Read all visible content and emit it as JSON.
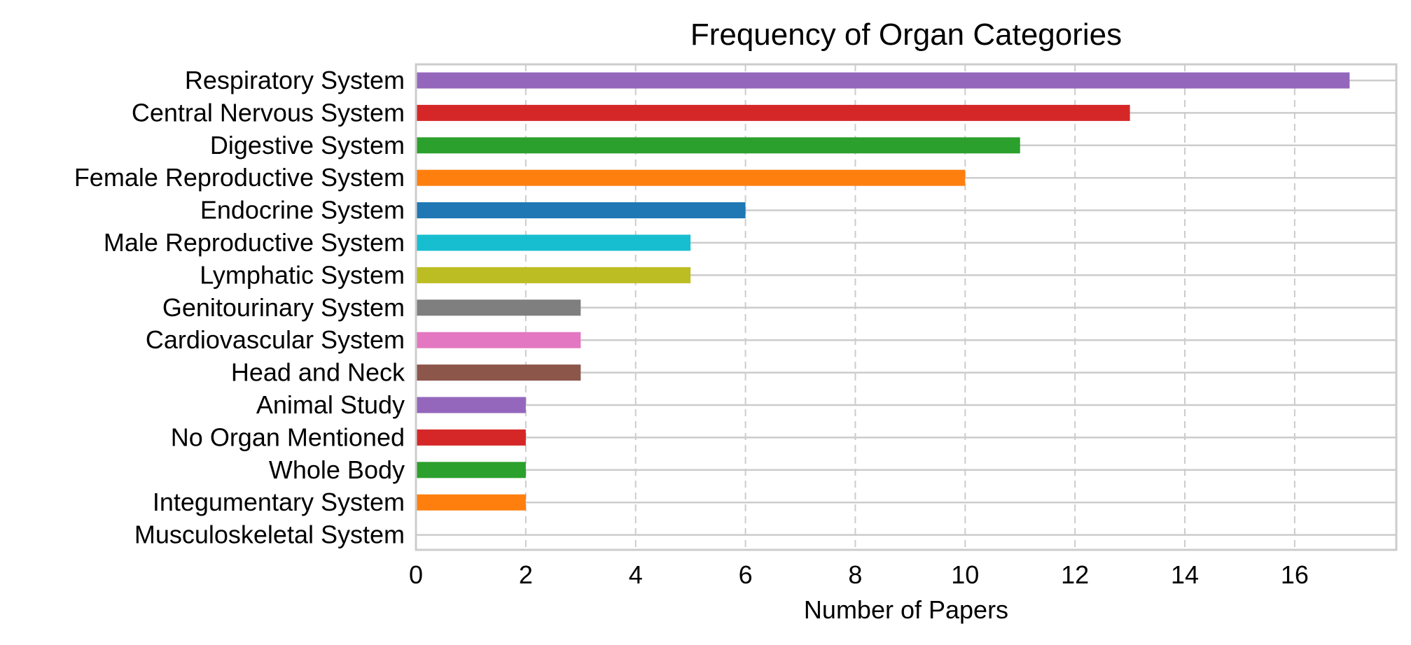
{
  "chart_data": {
    "type": "bar",
    "orientation": "horizontal",
    "title": "Frequency of Organ Categories",
    "xlabel": "Number of Papers",
    "ylabel": "",
    "xlim": [
      0,
      17.85
    ],
    "xticks": [
      0,
      2,
      4,
      6,
      8,
      10,
      12,
      14,
      16
    ],
    "grid": true,
    "categories": [
      "Respiratory System",
      "Central Nervous System",
      "Digestive System",
      "Female Reproductive System",
      "Endocrine System",
      "Male Reproductive System",
      "Lymphatic System",
      "Genitourinary System",
      "Cardiovascular System",
      "Head and Neck",
      "Animal Study",
      "No Organ Mentioned",
      "Whole Body",
      "Integumentary System",
      "Musculoskeletal System"
    ],
    "values": [
      17,
      13,
      11,
      10,
      6,
      5,
      5,
      3,
      3,
      3,
      2,
      2,
      2,
      2,
      0
    ],
    "colors": [
      "#9467bd",
      "#d62728",
      "#2ca02c",
      "#ff7f0e",
      "#1f77b4",
      "#17becf",
      "#bcbd22",
      "#7f7f7f",
      "#e377c2",
      "#8c564b",
      "#9467bd",
      "#d62728",
      "#2ca02c",
      "#ff7f0e",
      "#1f77b4"
    ]
  }
}
